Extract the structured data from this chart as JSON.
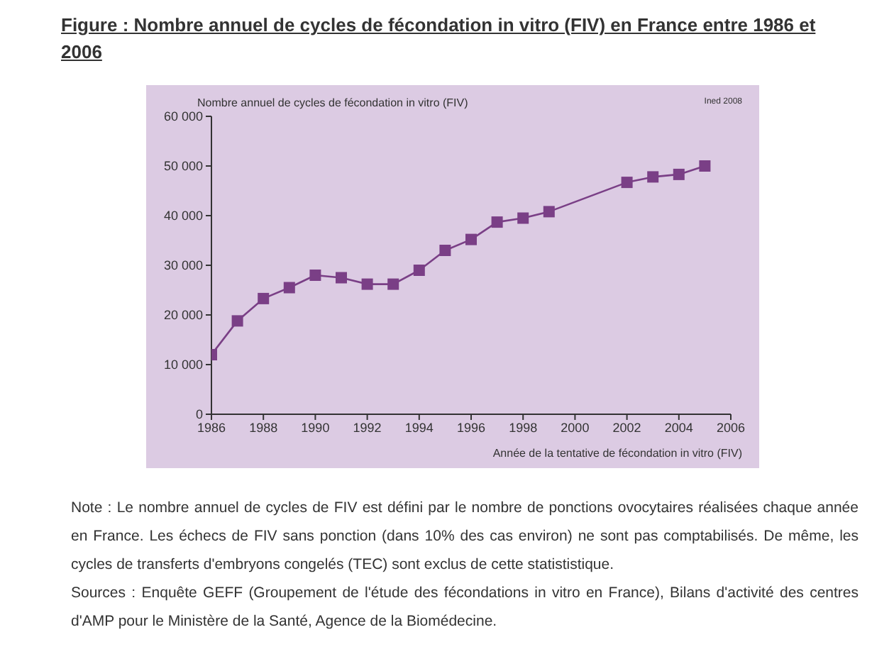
{
  "chart_data": {
    "type": "line",
    "title": "Figure : Nombre annuel de cycles de fécondation in vitro (FIV) en France entre 1986 et 2006",
    "ylabel": "Nombre annuel de cycles de fécondation in vitro (FIV)",
    "xlabel": "Année de la tentative de fécondation in vitro (FIV)",
    "x": [
      1986,
      1987,
      1988,
      1989,
      1990,
      1991,
      1992,
      1993,
      1994,
      1995,
      1996,
      1997,
      1998,
      1999,
      2002,
      2003,
      2004,
      2005
    ],
    "series": [
      {
        "color": "#7a3f86",
        "values": [
          12000,
          18800,
          23300,
          25500,
          28000,
          27500,
          26200,
          26200,
          29000,
          33000,
          35200,
          38700,
          39500,
          40800,
          46700,
          47800,
          48300,
          50000
        ]
      }
    ],
    "xlim": [
      1986,
      2006
    ],
    "xticks": [
      1986,
      1988,
      1990,
      1992,
      1994,
      1996,
      1998,
      2000,
      2002,
      2004,
      2006
    ],
    "ylim": [
      0,
      60000
    ],
    "yticks": [
      0,
      {
        "value": 10000,
        "label": "10 000"
      },
      {
        "value": 20000,
        "label": "20 000"
      },
      {
        "value": 30000,
        "label": "30 000"
      },
      {
        "value": 40000,
        "label": "40 000"
      },
      {
        "value": 50000,
        "label": "50 000"
      },
      {
        "value": 60000,
        "label": "60 000"
      }
    ],
    "grid": false,
    "legend": false,
    "marker": "square",
    "line_style": "solid",
    "annotations": [
      "Ined 2008",
      "Note : Le nombre annuel de cycles de FIV est défini par le nombre de ponctions ovocytaires réalisées chaque année en France. Les échecs de FIV sans ponction (dans 10% des cas environ) ne sont pas comptabilisés. De même, les cycles de transferts d'embryons congelés (TEC) sont exclus de cette statististique.",
      "Sources : Enquête GEFF (Groupement de l'étude des fécondations in vitro en France), Bilans d'activité des centres d'AMP pour le Ministère de la Santé, Agence de la Biomédecine."
    ]
  }
}
